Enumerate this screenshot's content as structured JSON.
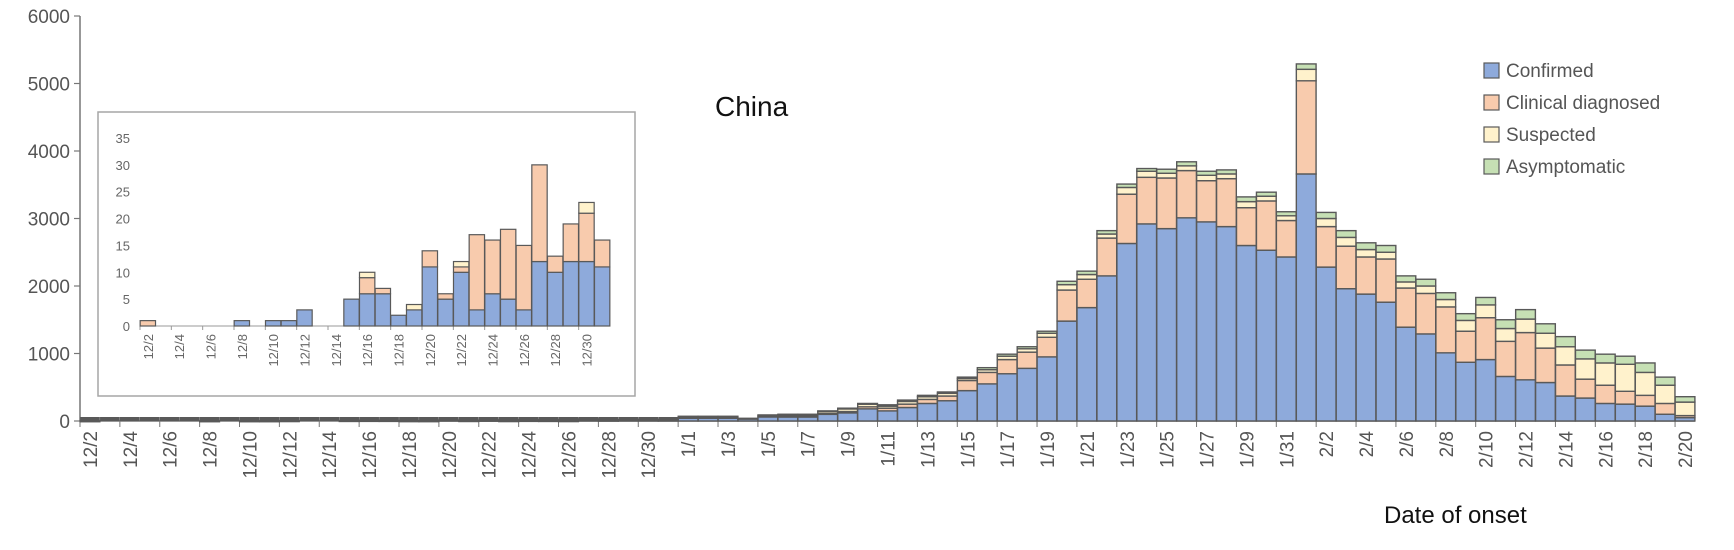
{
  "chart_data": [
    {
      "type": "bar",
      "stacked": true,
      "title": "China",
      "xlabel": "Date of onset",
      "ylabel": "",
      "ylim": [
        0,
        6000
      ],
      "yticks": [
        0,
        1000,
        2000,
        3000,
        4000,
        5000,
        6000
      ],
      "legend_position": "top-right",
      "categories": [
        "12/2",
        "12/3",
        "12/4",
        "12/5",
        "12/6",
        "12/7",
        "12/8",
        "12/9",
        "12/10",
        "12/11",
        "12/12",
        "12/13",
        "12/14",
        "12/15",
        "12/16",
        "12/17",
        "12/18",
        "12/19",
        "12/20",
        "12/21",
        "12/22",
        "12/23",
        "12/24",
        "12/25",
        "12/26",
        "12/27",
        "12/28",
        "12/29",
        "12/30",
        "12/31",
        "1/1",
        "1/2",
        "1/3",
        "1/4",
        "1/5",
        "1/6",
        "1/7",
        "1/8",
        "1/9",
        "1/10",
        "1/11",
        "1/12",
        "1/13",
        "1/14",
        "1/15",
        "1/16",
        "1/17",
        "1/18",
        "1/19",
        "1/20",
        "1/21",
        "1/22",
        "1/23",
        "1/24",
        "1/25",
        "1/26",
        "1/27",
        "1/28",
        "1/29",
        "1/30",
        "1/31",
        "2/1",
        "2/2",
        "2/3",
        "2/4",
        "2/5",
        "2/6",
        "2/7",
        "2/8",
        "2/9",
        "2/10",
        "2/11",
        "2/12",
        "2/13",
        "2/14",
        "2/15",
        "2/16",
        "2/17",
        "2/18",
        "2/19",
        "2/20"
      ],
      "xtick_labels": [
        "12/2",
        "12/4",
        "12/6",
        "12/8",
        "12/10",
        "12/12",
        "12/14",
        "12/16",
        "12/18",
        "12/20",
        "12/22",
        "12/24",
        "12/26",
        "12/28",
        "12/30",
        "1/1",
        "1/3",
        "1/5",
        "1/7",
        "1/9",
        "1/11",
        "1/13",
        "1/15",
        "1/17",
        "1/19",
        "1/21",
        "1/23",
        "1/25",
        "1/27",
        "1/29",
        "1/31",
        "2/2",
        "2/4",
        "2/6",
        "2/8",
        "2/10",
        "2/12",
        "2/14",
        "2/16",
        "2/18",
        "2/20"
      ],
      "series": [
        {
          "name": "Confirmed",
          "color": "#8eaadb",
          "values": [
            0,
            0,
            0,
            0,
            0,
            0,
            1,
            0,
            1,
            1,
            3,
            0,
            0,
            5,
            6,
            6,
            2,
            3,
            11,
            5,
            10,
            3,
            6,
            5,
            3,
            12,
            10,
            12,
            12,
            11,
            40,
            40,
            40,
            30,
            60,
            60,
            60,
            100,
            120,
            180,
            150,
            200,
            260,
            300,
            450,
            550,
            700,
            780,
            950,
            1480,
            1680,
            2150,
            2630,
            2920,
            2850,
            3010,
            2950,
            2880,
            2600,
            2530,
            2430,
            3660,
            2280,
            1960,
            1880,
            1760,
            1390,
            1290,
            1010,
            870,
            910,
            660,
            610,
            570,
            370,
            340,
            260,
            250,
            220,
            100,
            50
          ]
        },
        {
          "name": "Clinical diagnosed",
          "color": "#f8cbad",
          "values": [
            1,
            0,
            0,
            0,
            0,
            0,
            0,
            0,
            0,
            0,
            0,
            0,
            0,
            0,
            3,
            1,
            0,
            0,
            3,
            1,
            1,
            14,
            10,
            13,
            12,
            18,
            3,
            7,
            9,
            5,
            0,
            0,
            0,
            0,
            0,
            10,
            10,
            10,
            20,
            30,
            40,
            50,
            60,
            70,
            150,
            170,
            210,
            240,
            290,
            460,
            420,
            560,
            730,
            690,
            750,
            700,
            610,
            710,
            560,
            730,
            540,
            1380,
            600,
            630,
            550,
            640,
            580,
            600,
            680,
            460,
            620,
            520,
            700,
            510,
            460,
            280,
            270,
            190,
            160,
            160,
            30
          ]
        },
        {
          "name": "Suspected",
          "color": "#fff2cc",
          "values": [
            0,
            0,
            0,
            0,
            0,
            0,
            0,
            0,
            0,
            0,
            0,
            0,
            0,
            0,
            1,
            0,
            0,
            1,
            0,
            0,
            1,
            0,
            0,
            0,
            0,
            0,
            0,
            0,
            2,
            0,
            20,
            20,
            20,
            0,
            20,
            20,
            20,
            30,
            40,
            40,
            30,
            40,
            40,
            40,
            30,
            40,
            50,
            50,
            60,
            80,
            70,
            60,
            100,
            90,
            70,
            70,
            80,
            70,
            90,
            70,
            70,
            170,
            120,
            130,
            110,
            100,
            90,
            110,
            110,
            160,
            190,
            190,
            200,
            220,
            270,
            300,
            330,
            400,
            340,
            270,
            200
          ]
        },
        {
          "name": "Asymptomatic",
          "color": "#c6e0b4",
          "values": [
            0,
            0,
            0,
            0,
            0,
            0,
            0,
            0,
            0,
            0,
            0,
            0,
            0,
            0,
            0,
            0,
            0,
            0,
            0,
            0,
            0,
            0,
            0,
            0,
            0,
            0,
            0,
            0,
            0,
            0,
            10,
            10,
            10,
            10,
            10,
            10,
            10,
            10,
            10,
            10,
            20,
            20,
            20,
            20,
            20,
            30,
            30,
            30,
            30,
            50,
            50,
            50,
            50,
            40,
            60,
            60,
            60,
            60,
            70,
            60,
            60,
            80,
            90,
            100,
            100,
            100,
            90,
            100,
            100,
            100,
            110,
            130,
            140,
            140,
            150,
            130,
            130,
            120,
            140,
            120,
            80
          ]
        }
      ]
    },
    {
      "type": "bar",
      "stacked": true,
      "title": "",
      "ylim": [
        0,
        35
      ],
      "yticks": [
        0,
        5,
        10,
        15,
        20,
        25,
        30,
        35
      ],
      "categories": [
        "12/2",
        "12/3",
        "12/4",
        "12/5",
        "12/6",
        "12/7",
        "12/8",
        "12/9",
        "12/10",
        "12/11",
        "12/12",
        "12/13",
        "12/14",
        "12/15",
        "12/16",
        "12/17",
        "12/18",
        "12/19",
        "12/20",
        "12/21",
        "12/22",
        "12/23",
        "12/24",
        "12/25",
        "12/26",
        "12/27",
        "12/28",
        "12/29",
        "12/30",
        "12/31"
      ],
      "xtick_labels": [
        "12/2",
        "12/4",
        "12/6",
        "12/8",
        "12/10",
        "12/12",
        "12/14",
        "12/16",
        "12/18",
        "12/20",
        "12/22",
        "12/24",
        "12/26",
        "12/28",
        "12/30"
      ],
      "series": [
        {
          "name": "Confirmed",
          "color": "#8eaadb",
          "values": [
            0,
            0,
            0,
            0,
            0,
            0,
            1,
            0,
            1,
            1,
            3,
            0,
            0,
            5,
            6,
            6,
            2,
            3,
            11,
            5,
            10,
            3,
            6,
            5,
            3,
            12,
            10,
            12,
            12,
            11
          ]
        },
        {
          "name": "Clinical diagnosed",
          "color": "#f8cbad",
          "values": [
            1,
            0,
            0,
            0,
            0,
            0,
            0,
            0,
            0,
            0,
            0,
            0,
            0,
            0,
            3,
            1,
            0,
            0,
            3,
            1,
            1,
            14,
            10,
            13,
            12,
            18,
            3,
            7,
            9,
            5
          ]
        },
        {
          "name": "Suspected",
          "color": "#fff2cc",
          "values": [
            0,
            0,
            0,
            0,
            0,
            0,
            0,
            0,
            0,
            0,
            0,
            0,
            0,
            0,
            1,
            0,
            0,
            1,
            0,
            0,
            1,
            0,
            0,
            0,
            0,
            0,
            0,
            0,
            2,
            0
          ]
        },
        {
          "name": "Asymptomatic",
          "color": "#c6e0b4",
          "values": [
            0,
            0,
            0,
            0,
            0,
            0,
            0,
            0,
            0,
            0,
            0,
            0,
            0,
            0,
            0,
            0,
            0,
            0,
            0,
            0,
            0,
            0,
            0,
            0,
            0,
            0,
            0,
            0,
            0,
            0
          ]
        }
      ]
    }
  ]
}
